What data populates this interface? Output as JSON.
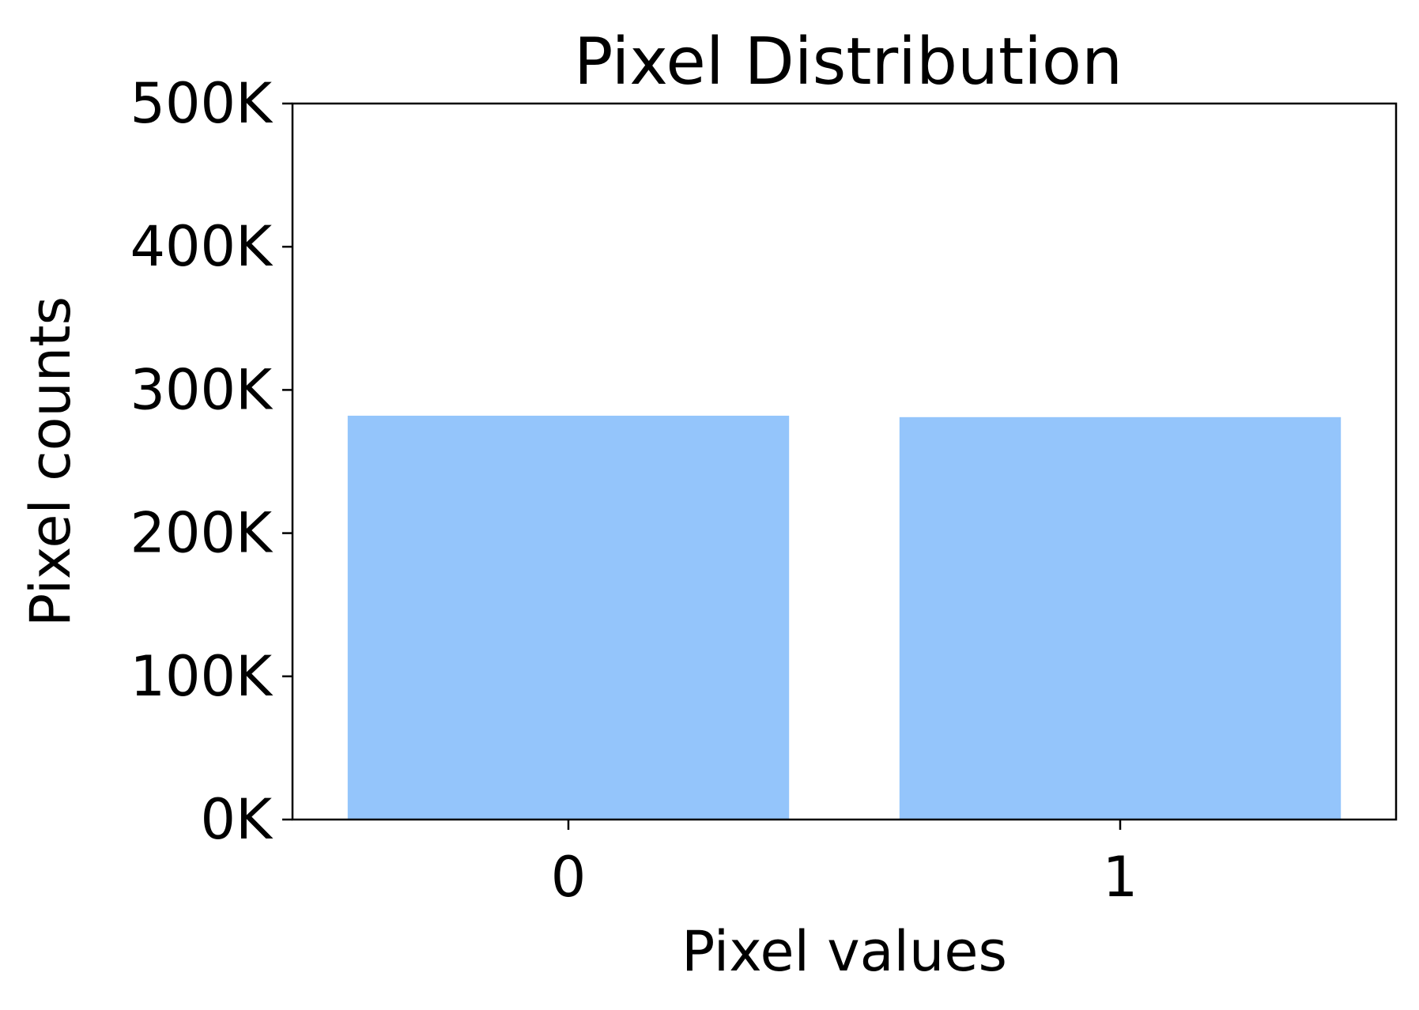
{
  "chart_data": {
    "type": "bar",
    "title": "Pixel Distribution",
    "xlabel": "Pixel values",
    "ylabel": "Pixel counts",
    "categories": [
      "0",
      "1"
    ],
    "values": [
      282000,
      281000
    ],
    "ylim": [
      0,
      500000
    ],
    "yticks": [
      0,
      100000,
      200000,
      300000,
      400000,
      500000
    ],
    "ytick_labels": [
      "0K",
      "100K",
      "200K",
      "300K",
      "400K",
      "500K"
    ],
    "bar_color": "#94c5fb",
    "grid": false,
    "legend": "none"
  }
}
